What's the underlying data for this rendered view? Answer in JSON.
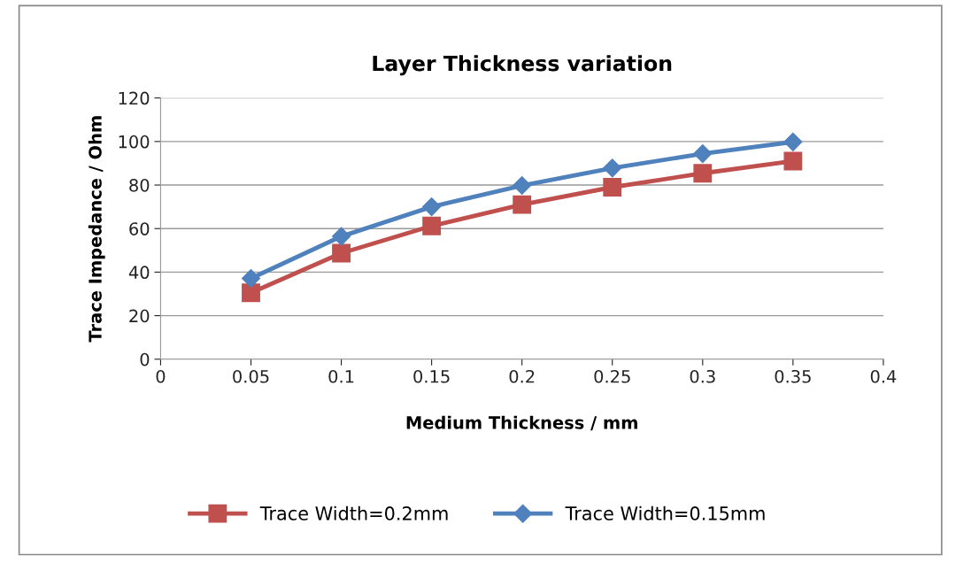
{
  "chart_data": {
    "type": "line",
    "title": "Layer Thickness variation",
    "xlabel": "Medium Thickness / mm",
    "ylabel": "Trace Impedance / Ohm",
    "x": [
      0.05,
      0.1,
      0.15,
      0.2,
      0.25,
      0.3,
      0.35
    ],
    "series": [
      {
        "name": "Trace Width=0.2mm",
        "color": "#c0504d",
        "marker": "square",
        "values": [
          30.5,
          48.7,
          61.2,
          71,
          79,
          85.4,
          91
        ]
      },
      {
        "name": "Trace Width=0.15mm",
        "color": "#4f81bd",
        "marker": "diamond",
        "values": [
          37.1,
          56.4,
          70,
          79.8,
          87.8,
          94.4,
          99.8
        ]
      }
    ],
    "xlim": [
      0,
      0.4
    ],
    "xticks": [
      0,
      0.05,
      0.1,
      0.15,
      0.2,
      0.25,
      0.3,
      0.35,
      0.4
    ],
    "ylim": [
      0,
      120
    ],
    "yticks": [
      0,
      20,
      40,
      60,
      80,
      100,
      120
    ],
    "grid": "y",
    "legend": "bottom",
    "line_style": "solid"
  }
}
